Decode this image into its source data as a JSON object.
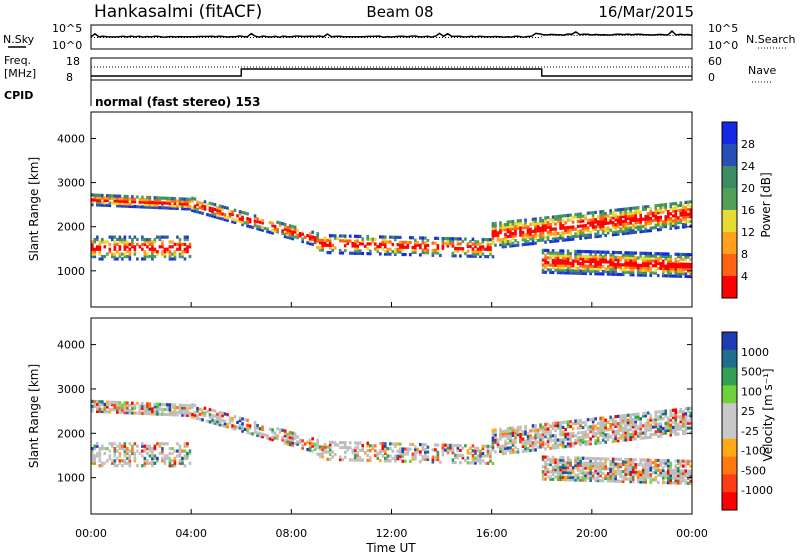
{
  "header": {
    "station": "Hankasalmi (fitACF)",
    "beam": "Beam 08",
    "date": "16/Mar/2015"
  },
  "status_rows": {
    "nsky_label": "N.Sky",
    "nsearch_label": "N.Search",
    "noise_tick_high": "10^5",
    "noise_tick_low": "10^0",
    "freq_label_line1": "Freq.",
    "freq_label_line2": "[MHz]",
    "freq_ticks": [
      "18",
      "8"
    ],
    "nave_label": "Nave",
    "nave_ticks": [
      "60",
      "0"
    ],
    "cpid_label": "CPID",
    "cpid_text": "normal (fast stereo) 153"
  },
  "colors": {
    "power_scale": [
      "#1428e6",
      "#2850b4",
      "#3c8c64",
      "#50a05a",
      "#e6dc32",
      "#ffa01e",
      "#ff6414",
      "#ff0000"
    ],
    "velocity_scale": [
      "#1e3cb4",
      "#1e6e8c",
      "#32a050",
      "#6ed23c",
      "#c8c8c8",
      "#c8c8c8",
      "#ffaa14",
      "#ff7814",
      "#ff3c14",
      "#ff0000"
    ],
    "ground_scatter": "#bebebe"
  },
  "chart_data": [
    {
      "type": "heatmap",
      "name": "power",
      "ylabel": "Slant Range [km]",
      "y_ticks": [
        "4000",
        "3000",
        "2000",
        "1000"
      ],
      "ylim": [
        180,
        4600
      ],
      "colorbar_label": "Power [dB]",
      "colorbar_ticks": [
        "28",
        "24",
        "20",
        "16",
        "12",
        "8",
        "4"
      ],
      "colorbar_range": [
        0,
        32
      ]
    },
    {
      "type": "heatmap",
      "name": "velocity",
      "ylabel": "Slant Range [km]",
      "y_ticks": [
        "4000",
        "3000",
        "2000",
        "1000"
      ],
      "ylim": [
        180,
        4600
      ],
      "xlabel": "Time UT",
      "x_ticks": [
        "00:00",
        "04:00",
        "08:00",
        "12:00",
        "16:00",
        "20:00",
        "00:00"
      ],
      "colorbar_label": "Velocity [m s⁻¹]",
      "colorbar_ticks": [
        "1000",
        "500",
        "100",
        "25",
        "-25",
        "-100",
        "-500",
        "-1000"
      ]
    }
  ]
}
